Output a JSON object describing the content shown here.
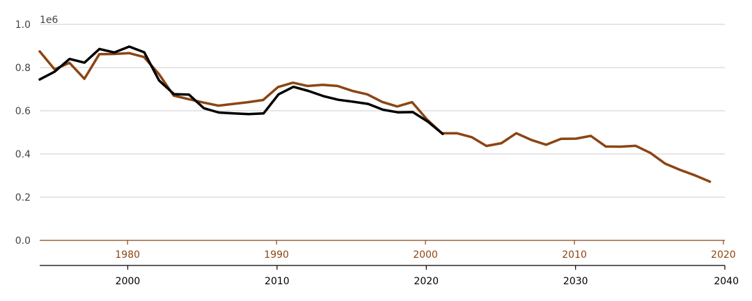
{
  "chart_data": {
    "type": "line",
    "title": "",
    "y_axis": {
      "ticks": [
        "0.0",
        "0.2",
        "0.4",
        "0.6",
        "0.8",
        "1.0"
      ],
      "tick_values": [
        0,
        200000,
        400000,
        600000,
        800000,
        1000000
      ],
      "multiplier_label": "1e6",
      "range": [
        0,
        1000000
      ],
      "grid": true
    },
    "x_axis_bottom": {
      "ticks": [
        "2000",
        "2010",
        "2020",
        "2030",
        "2040"
      ],
      "tick_values": [
        2000,
        2010,
        2020,
        2030,
        2040
      ],
      "range": [
        1994.1,
        2040
      ],
      "color": "#000000"
    },
    "x_axis_top": {
      "ticks": [
        "1980",
        "1990",
        "2000",
        "2010",
        "2020"
      ],
      "tick_values": [
        1980,
        1990,
        2000,
        2010,
        2020
      ],
      "range": [
        1974.1,
        2020.1
      ],
      "color": "#8B4513"
    },
    "series": [
      {
        "color": "#8B4513",
        "axis": "top",
        "x": [
          1974.1,
          1975.1,
          1976.1,
          1977.1,
          1978.1,
          1979.1,
          1980.1,
          1981.1,
          1982.1,
          1983.1,
          1984.1,
          1985.1,
          1986.1,
          1987.1,
          1988.1,
          1989.1,
          1990.1,
          1991.1,
          1992.1,
          1993.1,
          1994.1,
          1995.1,
          1996.1,
          1997.1,
          1998.1,
          1999.1,
          2000.1,
          2001.1,
          2002.1,
          2003.1,
          2004.1,
          2005.1,
          2006.1,
          2007.1,
          2008.1,
          2009.1,
          2010.1,
          2011.1,
          2012.1,
          2013.1,
          2014.1,
          2015.1,
          2016.1,
          2017.1,
          2018.1,
          2019.1
        ],
        "y": [
          875000,
          792000,
          822000,
          748000,
          862000,
          863000,
          867000,
          849000,
          771000,
          670000,
          654000,
          638000,
          624000,
          632000,
          640000,
          650000,
          710000,
          730000,
          715000,
          720000,
          715000,
          692000,
          676000,
          641000,
          620000,
          640000,
          560000,
          496000,
          496000,
          478000,
          437000,
          450000,
          496000,
          465000,
          443000,
          470000,
          471000,
          484000,
          435000,
          434000,
          438000,
          405000,
          355000,
          326000,
          301000,
          272000
        ]
      },
      {
        "color": "#000000",
        "axis": "bottom",
        "x": [
          1994.1,
          1995.1,
          1996.1,
          1997.1,
          1998.1,
          1999.1,
          2000.1,
          2001.1,
          2002.1,
          2003.1,
          2004.1,
          2005.1,
          2006.1,
          2007.1,
          2008.1,
          2009.1,
          2010.1,
          2011.1,
          2012.1,
          2013.1,
          2014.1,
          2015.1,
          2016.1,
          2017.1,
          2018.1,
          2019.1,
          2020.1,
          2021.1
        ],
        "y": [
          745000,
          781000,
          840000,
          823000,
          886000,
          870000,
          897000,
          871000,
          740000,
          677000,
          675000,
          612000,
          592000,
          588000,
          585000,
          588000,
          676000,
          711000,
          692000,
          668000,
          651000,
          642000,
          632000,
          605000,
          593000,
          594000,
          550000,
          493000
        ]
      }
    ]
  }
}
